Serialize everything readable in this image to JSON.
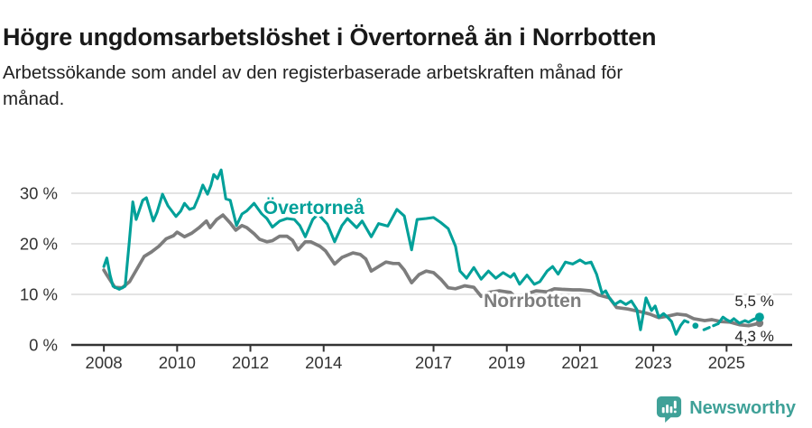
{
  "header": {
    "title": "Högre ungdomsarbetslöshet i Övertorneå än i Norrbotten",
    "subtitle_line1": "Arbetssökande som andel av den registerbaserade arbetskraften månad för",
    "subtitle_line2": "månad."
  },
  "footer": {
    "brand": "Newsworthy",
    "brand_color": "#3fa198"
  },
  "chart_data": {
    "type": "line",
    "title": "Högre ungdomsarbetslöshet i Övertorneå än i Norrbotten",
    "subtitle": "Arbetssökande som andel av den registerbaserade arbetskraften månad för månad.",
    "unit": "%",
    "grid": "horizontal",
    "legend_position": "inline-labels",
    "xlim": [
      2007.11,
      2026.79
    ],
    "ylim": [
      0,
      35
    ],
    "y_ticks": [
      {
        "value": 0,
        "label": "0 %"
      },
      {
        "value": 10,
        "label": "10 %"
      },
      {
        "value": 20,
        "label": "20 %"
      },
      {
        "value": 30,
        "label": "30 %"
      }
    ],
    "x_ticks": [
      {
        "value": 2008,
        "label": "2008"
      },
      {
        "value": 2010,
        "label": "2010"
      },
      {
        "value": 2012,
        "label": "2012"
      },
      {
        "value": 2014,
        "label": "2014"
      },
      {
        "value": 2017,
        "label": "2017"
      },
      {
        "value": 2019,
        "label": "2019"
      },
      {
        "value": 2021,
        "label": "2021"
      },
      {
        "value": 2023,
        "label": "2023"
      },
      {
        "value": 2025,
        "label": "2025"
      }
    ],
    "series": [
      {
        "name": "Norrbotten",
        "color": "#7d7d7d",
        "stroke_width": 3.7,
        "end_dot_r": 4.3,
        "end_label": "4,3 %",
        "end_value": 4.3,
        "end_label_side": "below",
        "label_at": [
          2018.37,
          7.5
        ],
        "segments": [
          {
            "style": "solid",
            "points": [
              [
                2008.0,
                14.8
              ],
              [
                2008.1,
                13.6
              ],
              [
                2008.3,
                11.4
              ],
              [
                2008.5,
                11.3
              ],
              [
                2008.7,
                12.5
              ],
              [
                2008.9,
                15.0
              ],
              [
                2009.1,
                17.5
              ],
              [
                2009.3,
                18.4
              ],
              [
                2009.5,
                19.5
              ],
              [
                2009.7,
                21.0
              ],
              [
                2009.9,
                21.6
              ],
              [
                2010.0,
                22.3
              ],
              [
                2010.2,
                21.4
              ],
              [
                2010.4,
                22.1
              ],
              [
                2010.6,
                23.2
              ],
              [
                2010.8,
                24.5
              ],
              [
                2010.9,
                23.2
              ],
              [
                2011.08,
                24.8
              ],
              [
                2011.25,
                25.7
              ],
              [
                2011.45,
                24.1
              ],
              [
                2011.6,
                22.7
              ],
              [
                2011.77,
                23.6
              ],
              [
                2011.9,
                23.2
              ],
              [
                2012.1,
                22.0
              ],
              [
                2012.25,
                20.9
              ],
              [
                2012.45,
                20.4
              ],
              [
                2012.6,
                20.6
              ],
              [
                2012.8,
                21.5
              ],
              [
                2013.0,
                21.5
              ],
              [
                2013.15,
                20.7
              ],
              [
                2013.3,
                18.8
              ],
              [
                2013.5,
                20.4
              ],
              [
                2013.65,
                20.4
              ],
              [
                2013.9,
                19.5
              ],
              [
                2014.05,
                18.6
              ],
              [
                2014.3,
                16.0
              ],
              [
                2014.5,
                17.3
              ],
              [
                2014.8,
                18.2
              ],
              [
                2015.0,
                17.9
              ],
              [
                2015.15,
                17.0
              ],
              [
                2015.3,
                14.6
              ],
              [
                2015.5,
                15.5
              ],
              [
                2015.7,
                16.4
              ],
              [
                2015.9,
                16.1
              ],
              [
                2016.05,
                16.1
              ],
              [
                2016.2,
                14.8
              ],
              [
                2016.4,
                12.3
              ],
              [
                2016.6,
                13.9
              ],
              [
                2016.8,
                14.6
              ],
              [
                2017.0,
                14.3
              ],
              [
                2017.2,
                13.0
              ],
              [
                2017.4,
                11.3
              ],
              [
                2017.6,
                11.1
              ],
              [
                2017.85,
                11.7
              ],
              [
                2018.1,
                11.4
              ],
              [
                2018.3,
                9.6
              ],
              [
                2018.5,
                10.4
              ],
              [
                2018.8,
                10.7
              ],
              [
                2019.1,
                10.4
              ],
              [
                2019.3,
                9.0
              ],
              [
                2019.5,
                10.0
              ],
              [
                2019.8,
                10.7
              ],
              [
                2020.1,
                10.5
              ],
              [
                2020.3,
                11.1
              ],
              [
                2020.5,
                11.0
              ],
              [
                2020.8,
                10.9
              ],
              [
                2021.0,
                10.9
              ],
              [
                2021.3,
                10.7
              ],
              [
                2021.5,
                9.9
              ],
              [
                2021.8,
                9.3
              ],
              [
                2022.0,
                7.4
              ],
              [
                2022.3,
                7.1
              ],
              [
                2022.5,
                6.8
              ],
              [
                2022.75,
                6.4
              ],
              [
                2022.9,
                6.1
              ],
              [
                2023.15,
                5.4
              ],
              [
                2023.4,
                5.7
              ],
              [
                2023.65,
                6.1
              ],
              [
                2023.9,
                5.9
              ],
              [
                2024.1,
                5.2
              ],
              [
                2024.4,
                4.8
              ],
              [
                2024.6,
                5.0
              ],
              [
                2024.85,
                4.6
              ],
              [
                2025.1,
                4.5
              ],
              [
                2025.35,
                4.0
              ],
              [
                2025.6,
                3.8
              ],
              [
                2025.9,
                4.3
              ]
            ]
          }
        ]
      },
      {
        "name": "Övertorneå",
        "color": "#00a099",
        "stroke_width": 3.1,
        "end_dot_r": 5,
        "end_label": "5,5 %",
        "end_value": 5.5,
        "end_label_side": "above",
        "label_at": [
          2012.35,
          25.9
        ],
        "segments": [
          {
            "style": "solid",
            "points": [
              [
                2008.0,
                15.5
              ],
              [
                2008.08,
                17.2
              ],
              [
                2008.17,
                13.8
              ],
              [
                2008.25,
                11.6
              ],
              [
                2008.42,
                11.0
              ],
              [
                2008.58,
                11.6
              ],
              [
                2008.69,
                20.0
              ],
              [
                2008.79,
                28.3
              ],
              [
                2008.88,
                24.8
              ],
              [
                2009.06,
                28.6
              ],
              [
                2009.16,
                29.1
              ],
              [
                2009.35,
                24.5
              ],
              [
                2009.45,
                26.2
              ],
              [
                2009.6,
                29.8
              ],
              [
                2009.75,
                27.5
              ],
              [
                2009.97,
                25.4
              ],
              [
                2010.1,
                26.5
              ],
              [
                2010.2,
                28.0
              ],
              [
                2010.34,
                26.8
              ],
              [
                2010.46,
                27.1
              ],
              [
                2010.6,
                29.5
              ],
              [
                2010.7,
                31.6
              ],
              [
                2010.83,
                29.8
              ],
              [
                2010.92,
                31.5
              ],
              [
                2011.0,
                33.7
              ],
              [
                2011.1,
                32.9
              ],
              [
                2011.2,
                34.6
              ],
              [
                2011.33,
                28.9
              ],
              [
                2011.45,
                28.6
              ],
              [
                2011.62,
                23.6
              ],
              [
                2011.77,
                25.9
              ],
              [
                2011.9,
                26.5
              ],
              [
                2012.1,
                28.0
              ],
              [
                2012.3,
                26.0
              ],
              [
                2012.45,
                25.0
              ],
              [
                2012.6,
                23.3
              ],
              [
                2012.8,
                24.5
              ],
              [
                2013.0,
                25.0
              ],
              [
                2013.2,
                24.8
              ],
              [
                2013.35,
                23.6
              ],
              [
                2013.5,
                21.4
              ],
              [
                2013.7,
                24.8
              ],
              [
                2013.85,
                25.9
              ],
              [
                2014.1,
                23.9
              ],
              [
                2014.3,
                20.4
              ],
              [
                2014.5,
                23.6
              ],
              [
                2014.65,
                25.0
              ],
              [
                2014.9,
                23.2
              ],
              [
                2015.05,
                24.5
              ],
              [
                2015.3,
                21.4
              ],
              [
                2015.5,
                24.0
              ],
              [
                2015.75,
                23.5
              ],
              [
                2016.0,
                26.8
              ],
              [
                2016.2,
                25.5
              ],
              [
                2016.4,
                18.8
              ],
              [
                2016.55,
                24.8
              ],
              [
                2016.8,
                25.0
              ],
              [
                2017.0,
                25.2
              ],
              [
                2017.2,
                24.2
              ],
              [
                2017.4,
                23.0
              ],
              [
                2017.6,
                19.5
              ],
              [
                2017.72,
                14.6
              ],
              [
                2017.9,
                13.2
              ],
              [
                2018.1,
                15.3
              ],
              [
                2018.3,
                13.0
              ],
              [
                2018.5,
                14.6
              ],
              [
                2018.7,
                13.2
              ],
              [
                2018.9,
                14.3
              ],
              [
                2019.1,
                13.4
              ],
              [
                2019.2,
                14.1
              ],
              [
                2019.35,
                12.0
              ],
              [
                2019.55,
                13.8
              ],
              [
                2019.75,
                12.0
              ],
              [
                2019.9,
                12.5
              ],
              [
                2020.1,
                14.6
              ],
              [
                2020.25,
                15.5
              ],
              [
                2020.4,
                14.0
              ],
              [
                2020.6,
                16.4
              ],
              [
                2020.8,
                16.0
              ],
              [
                2021.0,
                16.8
              ],
              [
                2021.15,
                16.1
              ],
              [
                2021.3,
                16.4
              ],
              [
                2021.45,
                14.0
              ],
              [
                2021.6,
                10.2
              ],
              [
                2021.7,
                10.7
              ],
              [
                2021.8,
                9.3
              ],
              [
                2021.95,
                8.0
              ],
              [
                2022.1,
                8.7
              ],
              [
                2022.25,
                8.0
              ],
              [
                2022.4,
                8.7
              ],
              [
                2022.55,
                7.0
              ],
              [
                2022.65,
                3.0
              ],
              [
                2022.8,
                9.3
              ],
              [
                2022.95,
                6.8
              ],
              [
                2023.05,
                7.7
              ],
              [
                2023.15,
                5.5
              ],
              [
                2023.28,
                6.2
              ],
              [
                2023.4,
                5.4
              ],
              [
                2023.5,
                4.6
              ],
              [
                2023.62,
                2.1
              ],
              [
                2023.75,
                3.9
              ],
              [
                2023.85,
                4.8
              ],
              [
                2023.95,
                4.5
              ]
            ]
          },
          {
            "style": "point",
            "points": [
              [
                2024.15,
                3.8
              ]
            ]
          },
          {
            "style": "dashed",
            "points": [
              [
                2024.38,
                3.0
              ],
              [
                2024.77,
                4.2
              ]
            ]
          },
          {
            "style": "solid",
            "points": [
              [
                2024.77,
                4.2
              ],
              [
                2024.9,
                5.5
              ],
              [
                2025.0,
                5.0
              ],
              [
                2025.1,
                4.6
              ],
              [
                2025.2,
                5.2
              ],
              [
                2025.35,
                4.3
              ],
              [
                2025.5,
                4.8
              ],
              [
                2025.6,
                4.5
              ],
              [
                2025.72,
                5.0
              ],
              [
                2025.9,
                5.5
              ]
            ]
          }
        ]
      }
    ]
  }
}
